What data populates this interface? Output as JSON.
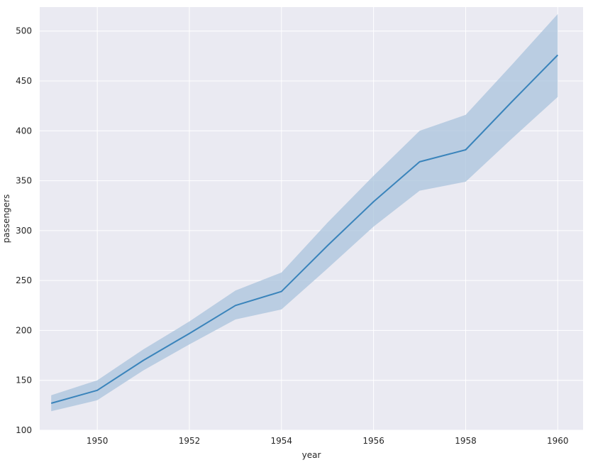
{
  "chart_data": {
    "type": "line",
    "style": "seaborn-darkgrid",
    "title": "",
    "xlabel": "year",
    "ylabel": "passengers",
    "xlim": [
      1948.75,
      1960.55
    ],
    "ylim": [
      100,
      524
    ],
    "grid": true,
    "legend": "none",
    "x_ticks": [
      1950,
      1952,
      1954,
      1956,
      1958,
      1960
    ],
    "x_tick_labels": [
      "1950",
      "1952",
      "1954",
      "1956",
      "1958",
      "1960"
    ],
    "y_ticks": [
      100,
      150,
      200,
      250,
      300,
      350,
      400,
      450,
      500
    ],
    "y_tick_labels": [
      "100",
      "150",
      "200",
      "250",
      "300",
      "350",
      "400",
      "450",
      "500"
    ],
    "series": [
      {
        "x": [
          1949,
          1950,
          1951,
          1952,
          1953,
          1954,
          1955,
          1956,
          1957,
          1958,
          1959,
          1960
        ],
        "values": [
          127,
          140,
          170,
          197,
          225,
          239,
          285,
          329,
          369,
          381,
          429,
          476
        ],
        "ci_lower": [
          119,
          130,
          160,
          186,
          211,
          221,
          262,
          304,
          340,
          349,
          392,
          434
        ],
        "ci_upper": [
          135,
          150,
          181,
          209,
          240,
          258,
          308,
          355,
          400,
          416,
          466,
          517
        ],
        "color": "#3a84bb",
        "band_color": "#a9c3dc"
      }
    ]
  },
  "colors": {
    "plot_background": "#eaeaf2",
    "grid": "#ffffff",
    "page_background": "#ffffff"
  }
}
